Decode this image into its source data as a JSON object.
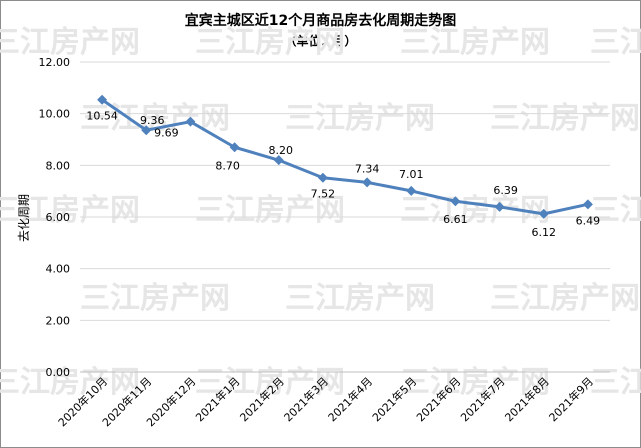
{
  "chart_data": {
    "type": "line",
    "title": "宜宾主城区近12个月商品房去化周期走势图",
    "subtitle": "（单位：月）",
    "xlabel": "",
    "ylabel": "去化周期",
    "categories": [
      "2020年10月",
      "2020年11月",
      "2020年12月",
      "2021年1月",
      "2021年2月",
      "2021年3月",
      "2021年4月",
      "2021年5月",
      "2021年6月",
      "2021年7月",
      "2021年8月",
      "2021年9月"
    ],
    "series": [
      {
        "values": [
          10.54,
          9.36,
          9.69,
          8.7,
          8.2,
          7.52,
          7.34,
          7.01,
          6.61,
          6.39,
          6.12,
          6.49
        ]
      }
    ],
    "data_labels": [
      "10.54",
      "9.36",
      "9.69",
      "8.70",
      "8.20",
      "7.52",
      "7.34",
      "7.01",
      "6.61",
      "6.39",
      "6.12",
      "6.49"
    ],
    "yticks": [
      "0.00",
      "2.00",
      "4.00",
      "6.00",
      "8.00",
      "10.00",
      "12.00"
    ],
    "ylim": [
      0,
      12
    ],
    "grid": true,
    "legend": "none",
    "colors": {
      "line": "#4f81bd",
      "grid": "#d9d9d9",
      "watermark": "#e6e6e6"
    },
    "watermark": "三江房产网"
  }
}
